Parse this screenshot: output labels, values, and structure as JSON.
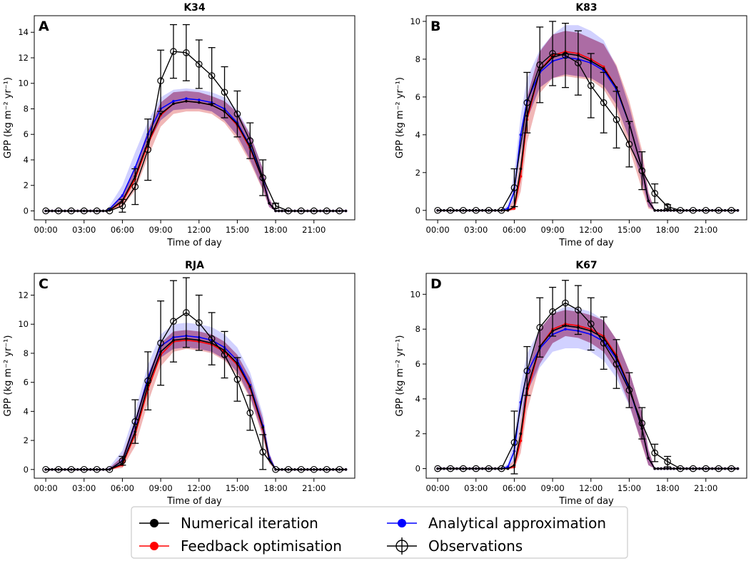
{
  "figure": {
    "legend": [
      {
        "key": "numerical",
        "label": "Numerical iteration",
        "color": "#000000",
        "marker": "filled"
      },
      {
        "key": "analytical",
        "label": "Analytical approximation",
        "color": "#0000ff",
        "marker": "filled"
      },
      {
        "key": "feedback",
        "label": "Feedback optimisation",
        "color": "#ff0000",
        "marker": "filled"
      },
      {
        "key": "observations",
        "label": "Observations",
        "color": "#000000",
        "marker": "errorbar-open-circle"
      }
    ],
    "colors": {
      "band_red": "#e06060",
      "band_blue": "#7b7bff",
      "band_purple": "#8a2a6e"
    }
  },
  "chart_data": [
    {
      "type": "line",
      "panel": "A",
      "title": "K34",
      "xlabel": "Time of day",
      "ylabel": "GPP (kg m⁻² yr⁻¹)",
      "xticks": [
        "00:00",
        "03:00",
        "06:00",
        "09:00",
        "12:00",
        "15:00",
        "18:00",
        "21:00"
      ],
      "yticks": [
        0,
        2,
        4,
        6,
        8,
        10,
        12,
        14
      ],
      "ylim": [
        -0.7,
        15.3
      ],
      "xlim": [
        -0.9,
        24.2
      ],
      "model_hours": [
        5,
        6,
        7,
        8,
        9,
        10,
        11,
        12,
        13,
        14,
        15,
        16,
        17,
        17.5,
        18
      ],
      "series": [
        {
          "name": "Feedback optimisation",
          "values": [
            0.05,
            0.7,
            2.5,
            5.2,
            7.5,
            8.4,
            8.6,
            8.5,
            8.3,
            7.8,
            6.7,
            4.9,
            2.4,
            0.6,
            0
          ]
        },
        {
          "name": "Analytical approximation",
          "values": [
            0.15,
            1.2,
            3.4,
            6.0,
            8.0,
            8.6,
            8.8,
            8.7,
            8.5,
            8.0,
            6.9,
            5.1,
            2.5,
            0.6,
            0
          ]
        },
        {
          "name": "Numerical iteration",
          "values": [
            0.05,
            0.8,
            2.7,
            5.4,
            7.6,
            8.4,
            8.6,
            8.5,
            8.3,
            7.8,
            6.8,
            5.0,
            2.4,
            0.6,
            0
          ]
        }
      ],
      "band_red": {
        "lower": [
          0,
          0.3,
          1.6,
          4.2,
          6.6,
          7.6,
          7.8,
          7.8,
          7.6,
          6.9,
          5.6,
          3.8,
          1.6,
          0.3,
          0
        ],
        "upper": [
          0.2,
          1.3,
          3.4,
          6.3,
          8.5,
          9.3,
          9.4,
          9.3,
          9.0,
          8.6,
          7.7,
          6.0,
          3.3,
          1.0,
          0.05
        ]
      },
      "band_blue": {
        "lower": [
          0.05,
          0.8,
          2.6,
          5.2,
          7.1,
          7.9,
          8.0,
          8.0,
          7.8,
          7.1,
          5.9,
          4.0,
          1.7,
          0.3,
          0
        ],
        "upper": [
          0.4,
          2.0,
          4.6,
          7.0,
          8.9,
          9.5,
          9.6,
          9.5,
          9.3,
          8.9,
          7.9,
          6.1,
          3.3,
          1.0,
          0.05
        ]
      },
      "observations": {
        "hours": [
          0,
          1,
          2,
          3,
          4,
          5,
          6,
          7,
          8,
          9,
          10,
          11,
          12,
          13,
          14,
          15,
          16,
          17,
          18,
          19,
          20,
          21,
          22,
          23
        ],
        "values": [
          0,
          0,
          0,
          0,
          0,
          0,
          0.4,
          1.9,
          4.8,
          10.2,
          12.5,
          12.4,
          11.5,
          10.6,
          9.3,
          7.6,
          5.5,
          2.6,
          0.4,
          0,
          0,
          0,
          0,
          0
        ],
        "errors": [
          0,
          0,
          0,
          0,
          0,
          0,
          0.5,
          1.4,
          2.4,
          2.4,
          2.1,
          2.2,
          1.9,
          2.2,
          2.0,
          1.8,
          1.4,
          1.4,
          0.2,
          0,
          0,
          0,
          0,
          0
        ]
      }
    },
    {
      "type": "line",
      "panel": "B",
      "title": "K83",
      "xlabel": "Time of day",
      "ylabel": "GPP (kg m⁻² yr⁻¹)",
      "xticks": [
        "00:00",
        "03:00",
        "06:00",
        "09:00",
        "12:00",
        "15:00",
        "18:00",
        "21:00"
      ],
      "yticks": [
        0,
        2,
        4,
        6,
        8,
        10
      ],
      "ylim": [
        -0.5,
        10.3
      ],
      "xlim": [
        -0.9,
        24.2
      ],
      "model_hours": [
        5,
        5.5,
        6,
        6.5,
        7,
        8,
        9,
        10,
        11,
        12,
        13,
        14,
        15,
        16,
        16.5,
        17
      ],
      "series": [
        {
          "name": "Feedback optimisation",
          "values": [
            0,
            0,
            0.1,
            1.8,
            4.8,
            7.4,
            8.2,
            8.4,
            8.3,
            8.0,
            7.6,
            6.5,
            4.6,
            2.2,
            0.5,
            0
          ]
        },
        {
          "name": "Analytical approximation",
          "values": [
            0,
            0.1,
            1.0,
            4.0,
            5.8,
            7.3,
            7.9,
            8.1,
            8.0,
            7.8,
            7.4,
            6.4,
            4.6,
            2.2,
            0.5,
            0
          ]
        },
        {
          "name": "Numerical iteration",
          "values": [
            0,
            0,
            0.2,
            2.2,
            5.0,
            7.4,
            8.1,
            8.3,
            8.2,
            7.9,
            7.5,
            6.5,
            4.6,
            2.2,
            0.5,
            0
          ]
        }
      ],
      "band_red": {
        "lower": [
          0,
          0,
          0,
          1.0,
          3.6,
          6.2,
          7.0,
          7.1,
          7.0,
          6.9,
          6.4,
          5.3,
          3.3,
          1.1,
          0.1,
          0
        ],
        "upper": [
          0,
          0.1,
          0.6,
          3.0,
          6.0,
          8.4,
          9.3,
          9.5,
          9.4,
          9.1,
          8.8,
          7.7,
          5.8,
          3.2,
          1.0,
          0
        ]
      },
      "band_blue": {
        "lower": [
          0,
          0.05,
          0.6,
          3.0,
          4.8,
          6.5,
          7.0,
          7.2,
          7.1,
          7.0,
          6.6,
          5.6,
          3.8,
          1.5,
          0.2,
          0
        ],
        "upper": [
          0,
          0.3,
          2.0,
          5.0,
          7.0,
          8.5,
          9.3,
          9.8,
          9.8,
          9.5,
          9.0,
          7.6,
          5.5,
          2.9,
          0.9,
          0
        ]
      },
      "observations": {
        "hours": [
          0,
          1,
          2,
          3,
          4,
          5,
          6,
          7,
          8,
          9,
          10,
          11,
          12,
          13,
          14,
          15,
          16,
          17,
          18,
          19,
          20,
          21,
          22,
          23
        ],
        "values": [
          0,
          0,
          0,
          0,
          0,
          0,
          1.2,
          5.7,
          7.7,
          8.3,
          8.2,
          7.8,
          6.6,
          5.7,
          4.8,
          3.5,
          2.1,
          0.9,
          0.2,
          0,
          0,
          0,
          0,
          0
        ],
        "errors": [
          0,
          0,
          0,
          0,
          0,
          0,
          1.0,
          1.6,
          2.0,
          1.7,
          1.7,
          1.7,
          1.7,
          1.6,
          1.5,
          1.2,
          1.0,
          0.5,
          0.1,
          0,
          0,
          0,
          0,
          0
        ]
      }
    },
    {
      "type": "line",
      "panel": "C",
      "title": "RJA",
      "xlabel": "Time of day",
      "ylabel": "GPP (kg m⁻² yr⁻¹)",
      "xticks": [
        "00:00",
        "03:00",
        "06:00",
        "09:00",
        "12:00",
        "15:00",
        "18:00",
        "21:00"
      ],
      "yticks": [
        0,
        2,
        4,
        6,
        8,
        10,
        12
      ],
      "ylim": [
        -0.6,
        13.5
      ],
      "xlim": [
        -0.9,
        24.2
      ],
      "model_hours": [
        5,
        6,
        7,
        8,
        9,
        10,
        11,
        12,
        13,
        14,
        15,
        16,
        17,
        17.5,
        18
      ],
      "series": [
        {
          "name": "Feedback optimisation",
          "values": [
            0,
            0.3,
            2.4,
            5.5,
            7.9,
            8.8,
            8.9,
            8.8,
            8.6,
            8.1,
            7.2,
            5.6,
            2.8,
            0.7,
            0
          ]
        },
        {
          "name": "Analytical approximation",
          "values": [
            0,
            0.6,
            3.2,
            6.3,
            8.5,
            9.1,
            9.2,
            9.1,
            8.9,
            8.4,
            7.5,
            5.8,
            3.0,
            0.8,
            0
          ]
        },
        {
          "name": "Numerical iteration",
          "values": [
            0,
            0.4,
            2.6,
            5.8,
            8.1,
            8.9,
            9.0,
            8.9,
            8.7,
            8.2,
            7.3,
            5.7,
            2.9,
            0.7,
            0
          ]
        }
      ],
      "band_red": {
        "lower": [
          0,
          0.1,
          1.6,
          4.6,
          7.1,
          8.1,
          8.3,
          8.2,
          8.0,
          7.5,
          6.5,
          4.9,
          2.2,
          0.4,
          0
        ],
        "upper": [
          0.1,
          0.9,
          3.4,
          6.5,
          8.7,
          9.5,
          9.6,
          9.5,
          9.3,
          8.8,
          7.9,
          6.3,
          3.5,
          1.1,
          0.05
        ]
      },
      "band_blue": {
        "lower": [
          0,
          0.3,
          2.6,
          5.6,
          7.7,
          8.3,
          8.4,
          8.3,
          8.1,
          7.6,
          6.7,
          5.0,
          2.4,
          0.5,
          0
        ],
        "upper": [
          0.2,
          1.3,
          4.0,
          7.2,
          9.3,
          10.0,
          10.1,
          10.0,
          9.8,
          9.3,
          8.4,
          6.7,
          3.8,
          1.2,
          0.05
        ]
      },
      "observations": {
        "hours": [
          0,
          1,
          2,
          3,
          4,
          5,
          6,
          7,
          8,
          9,
          10,
          11,
          12,
          13,
          14,
          15,
          16,
          17,
          18,
          19,
          20,
          21,
          22,
          23
        ],
        "values": [
          0,
          0,
          0,
          0,
          0,
          0,
          0.6,
          3.3,
          6.1,
          8.7,
          10.2,
          10.8,
          10.1,
          9.0,
          7.9,
          6.2,
          3.9,
          1.2,
          0,
          0,
          0,
          0,
          0,
          0
        ],
        "errors": [
          0,
          0,
          0,
          0,
          0,
          0,
          0.3,
          1.5,
          2.0,
          2.9,
          2.8,
          2.4,
          1.9,
          1.8,
          1.6,
          1.5,
          1.2,
          1.2,
          0,
          0,
          0,
          0,
          0,
          0
        ]
      }
    },
    {
      "type": "line",
      "panel": "D",
      "title": "K67",
      "xlabel": "Time of day",
      "ylabel": "GPP (kg m⁻² yr⁻¹)",
      "xticks": [
        "00:00",
        "03:00",
        "06:00",
        "09:00",
        "12:00",
        "15:00",
        "18:00",
        "21:00"
      ],
      "yticks": [
        0,
        2,
        4,
        6,
        8,
        10
      ],
      "ylim": [
        -0.55,
        11.2
      ],
      "xlim": [
        -0.9,
        24.2
      ],
      "model_hours": [
        5,
        5.5,
        6,
        6.5,
        7,
        8,
        9,
        10,
        11,
        12,
        13,
        14,
        15,
        16,
        16.5,
        17
      ],
      "series": [
        {
          "name": "Feedback optimisation",
          "values": [
            0,
            0,
            0.1,
            1.6,
            4.3,
            7.0,
            8.0,
            8.3,
            8.2,
            8.0,
            7.6,
            6.5,
            4.7,
            2.3,
            0.6,
            0
          ]
        },
        {
          "name": "Analytical approximation",
          "values": [
            0,
            0.1,
            1.0,
            3.8,
            5.5,
            6.9,
            7.7,
            8.0,
            7.9,
            7.7,
            7.3,
            6.3,
            4.6,
            2.3,
            0.6,
            0
          ]
        },
        {
          "name": "Numerical iteration",
          "values": [
            0,
            0,
            0.2,
            2.0,
            4.6,
            7.0,
            7.9,
            8.2,
            8.1,
            7.9,
            7.5,
            6.4,
            4.7,
            2.3,
            0.6,
            0
          ]
        }
      ],
      "band_red": {
        "lower": [
          0,
          0,
          0,
          0.9,
          3.3,
          6.0,
          7.2,
          7.6,
          7.5,
          7.2,
          6.7,
          5.6,
          3.7,
          1.3,
          0.2,
          0
        ],
        "upper": [
          0,
          0.1,
          0.5,
          2.7,
          5.4,
          8.0,
          8.9,
          9.1,
          9.0,
          8.8,
          8.5,
          7.4,
          5.6,
          3.2,
          1.1,
          0
        ]
      },
      "band_blue": {
        "lower": [
          0,
          0.05,
          0.5,
          2.8,
          4.4,
          5.8,
          6.7,
          6.9,
          6.9,
          6.7,
          6.2,
          5.2,
          3.6,
          1.4,
          0.2,
          0
        ],
        "upper": [
          0,
          0.3,
          1.8,
          4.8,
          6.6,
          8.0,
          8.9,
          9.3,
          9.2,
          9.0,
          8.5,
          7.4,
          5.6,
          3.2,
          1.1,
          0
        ]
      },
      "observations": {
        "hours": [
          0,
          1,
          2,
          3,
          4,
          5,
          6,
          7,
          8,
          9,
          10,
          11,
          12,
          13,
          14,
          15,
          16,
          17,
          18,
          19,
          20,
          21,
          22,
          23
        ],
        "values": [
          0,
          0,
          0,
          0,
          0,
          0,
          1.5,
          5.6,
          8.1,
          9.0,
          9.5,
          9.1,
          8.3,
          7.2,
          6.0,
          4.5,
          2.6,
          0.9,
          0.4,
          0,
          0,
          0,
          0,
          0
        ],
        "errors": [
          0,
          0,
          0,
          0,
          0,
          0,
          1.8,
          1.4,
          1.7,
          1.4,
          1.3,
          1.4,
          1.5,
          1.5,
          1.4,
          1.0,
          0.9,
          0.5,
          0.3,
          0,
          0,
          0,
          0,
          0
        ]
      }
    }
  ]
}
